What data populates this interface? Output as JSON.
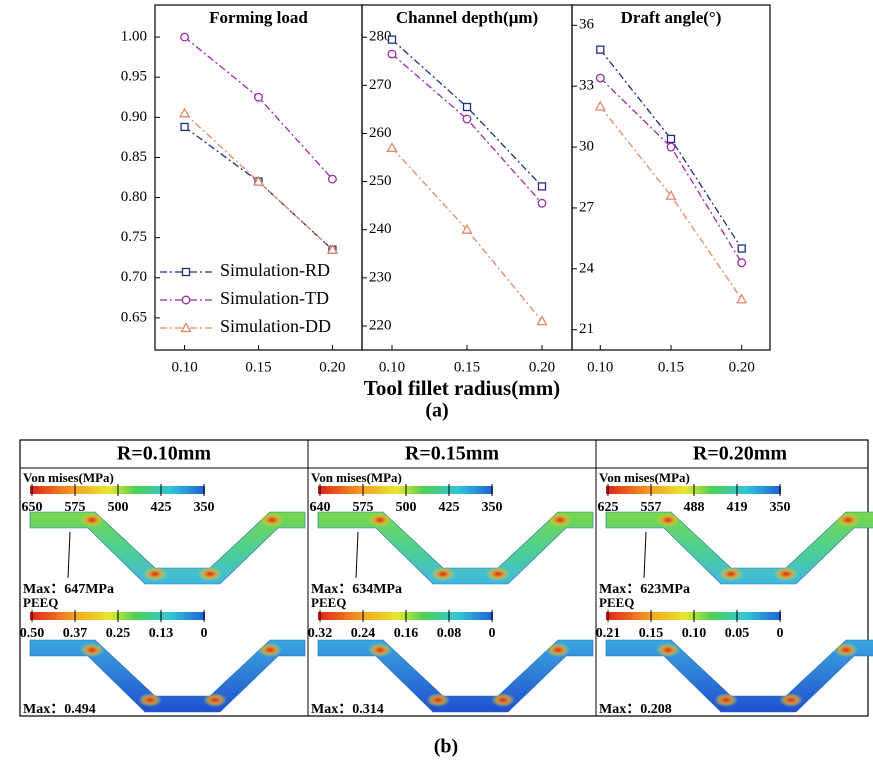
{
  "chart_data": [
    {
      "type": "line",
      "title": "Forming load",
      "x": [
        0.1,
        0.15,
        0.2
      ],
      "xlim": [
        0.08,
        0.22
      ],
      "xticks": [
        {
          "value": 0.1,
          "label": "0.10"
        },
        0.15,
        {
          "value": 0.2,
          "label": "0.20"
        }
      ],
      "ylim": [
        0.61,
        1.04
      ],
      "yticks": [
        0.65,
        {
          "value": 0.7,
          "label": "0.70"
        },
        0.75,
        {
          "value": 0.8,
          "label": "0.80"
        },
        0.85,
        {
          "value": 0.9,
          "label": "0.90"
        },
        0.95,
        {
          "value": 1,
          "label": "1.00"
        }
      ],
      "legend": "lower left",
      "series": [
        {
          "name": "Simulation-RD",
          "color": "#1f2d86",
          "marker": "square",
          "values": [
            0.888,
            0.82,
            0.735
          ]
        },
        {
          "name": "Simulation-TD",
          "color": "#9b2aa6",
          "marker": "circle",
          "values": [
            1.0,
            0.925,
            0.823
          ]
        },
        {
          "name": "Simulation-DD",
          "color": "#e08a68",
          "marker": "triangle",
          "values": [
            0.905,
            0.82,
            0.735
          ]
        }
      ]
    },
    {
      "type": "line",
      "title": "Channel depth(μm)",
      "x": [
        0.1,
        0.15,
        0.2
      ],
      "xlim": [
        0.08,
        0.22
      ],
      "xticks": [
        {
          "value": 0.1,
          "label": "0.10"
        },
        0.15,
        {
          "value": 0.2,
          "label": "0.20"
        }
      ],
      "ylim": [
        215,
        286.7
      ],
      "yticks": [
        220,
        230,
        240,
        250,
        260,
        270,
        280
      ],
      "series": [
        {
          "color": "#1f2d86",
          "marker": "square",
          "values": [
            279.5,
            265.5,
            249
          ]
        },
        {
          "color": "#9b2aa6",
          "marker": "circle",
          "values": [
            276.5,
            263,
            245.5
          ]
        },
        {
          "color": "#e08a68",
          "marker": "triangle",
          "values": [
            257,
            240,
            221
          ]
        }
      ]
    },
    {
      "type": "line",
      "title": "Draft angle(°)",
      "x": [
        0.1,
        0.15,
        0.2
      ],
      "xlim": [
        0.08,
        0.22
      ],
      "xticks": [
        {
          "value": 0.1,
          "label": "0.10"
        },
        0.15,
        {
          "value": 0.2,
          "label": "0.20"
        }
      ],
      "ylim": [
        20,
        37
      ],
      "yticks": [
        21,
        24,
        27,
        30,
        33,
        36
      ],
      "series": [
        {
          "color": "#1f2d86",
          "marker": "square",
          "values": [
            34.8,
            30.4,
            25
          ]
        },
        {
          "color": "#9b2aa6",
          "marker": "circle",
          "values": [
            33.4,
            30.0,
            24.3
          ]
        },
        {
          "color": "#e08a68",
          "marker": "triangle",
          "values": [
            32.0,
            27.6,
            22.5
          ]
        }
      ]
    }
  ],
  "x_label": "Tool fillet radius(mm)",
  "panel_a_label": "(a)",
  "fea": {
    "panel_label": "(b)",
    "columns": [
      {
        "title": "R=0.10mm",
        "mises": {
          "label": "Von mises(MPa)",
          "ticks": [
            "650",
            "575",
            "500",
            "425",
            "350"
          ],
          "max": "Max：647MPa"
        },
        "peeq": {
          "label": "PEEQ",
          "ticks": [
            "0.50",
            "0.37",
            "0.25",
            "0.13",
            "0"
          ],
          "max": "Max：0.494"
        }
      },
      {
        "title": "R=0.15mm",
        "mises": {
          "label": "Von mises(MPa)",
          "ticks": [
            "640",
            "575",
            "500",
            "425",
            "350"
          ],
          "max": "Max：634MPa"
        },
        "peeq": {
          "label": "PEEQ",
          "ticks": [
            "0.32",
            "0.24",
            "0.16",
            "0.08",
            "0"
          ],
          "max": "Max：0.314"
        }
      },
      {
        "title": "R=0.20mm",
        "mises": {
          "label": "Von mises(MPa)",
          "ticks": [
            "625",
            "557",
            "488",
            "419",
            "350"
          ],
          "max": "Max：623MPa"
        },
        "peeq": {
          "label": "PEEQ",
          "ticks": [
            "0.21",
            "0.15",
            "0.10",
            "0.05",
            "0"
          ],
          "max": "Max：0.208"
        }
      }
    ]
  }
}
